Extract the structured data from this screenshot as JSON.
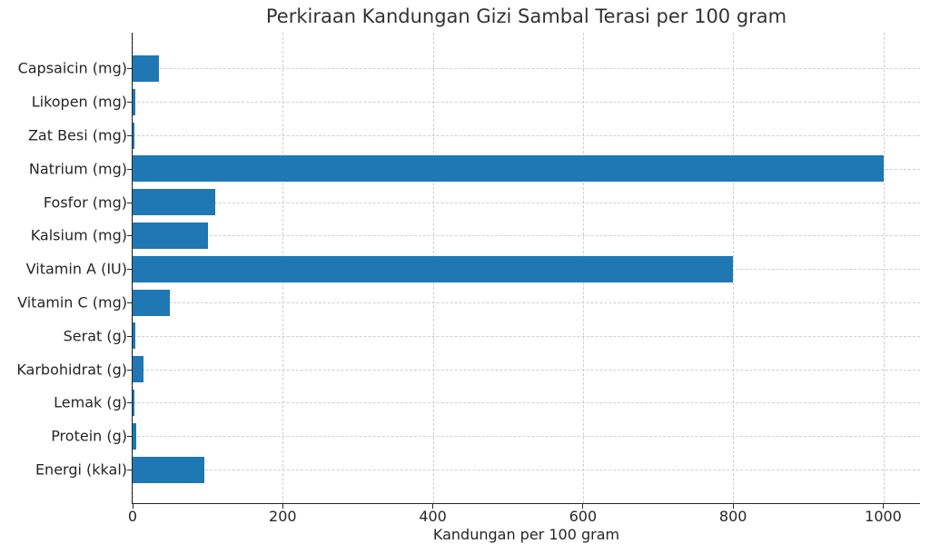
{
  "chart_data": {
    "type": "bar",
    "orientation": "horizontal",
    "title": "Perkiraan Kandungan Gizi Sambal Terasi per 100 gram",
    "xlabel": "Kandungan per 100 gram",
    "ylabel": "",
    "xlim": [
      0,
      1048
    ],
    "xticks": [
      0,
      200,
      400,
      600,
      800,
      1000
    ],
    "grid": true,
    "legend": null,
    "bar_color": "#1f77b4",
    "categories": [
      "Energi (kkal)",
      "Protein (g)",
      "Lemak (g)",
      "Karbohidrat (g)",
      "Serat (g)",
      "Vitamin C (mg)",
      "Vitamin A (IU)",
      "Kalsium (mg)",
      "Fosfor (mg)",
      "Natrium (mg)",
      "Zat Besi (mg)",
      "Likopen (mg)",
      "Capsaicin (mg)"
    ],
    "values": [
      95,
      5,
      2,
      14,
      3.5,
      50,
      800,
      100,
      110,
      1000,
      2,
      3.5,
      35
    ]
  }
}
